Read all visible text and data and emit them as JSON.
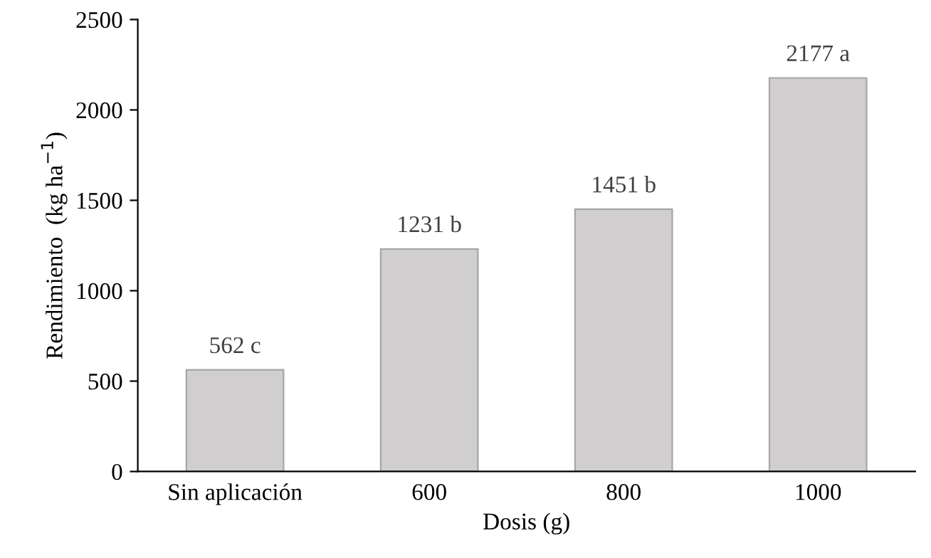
{
  "chart_data": {
    "type": "bar",
    "xlabel": "Dosis (g)",
    "ylabel": "Rendimiento  (kg ha$^{−1}$)",
    "categories": [
      "Sin aplicación",
      "600",
      "800",
      "1000"
    ],
    "values": [
      562,
      1231,
      1451,
      2177
    ],
    "value_labels": [
      "562 c",
      "1231 b",
      "1451 b",
      "2177 a"
    ],
    "color": "#d0cece",
    "ylim": [
      0,
      2500
    ],
    "yticks": [
      0,
      500,
      1000,
      1500,
      2000,
      2500
    ],
    "grid": false,
    "legend": false
  }
}
